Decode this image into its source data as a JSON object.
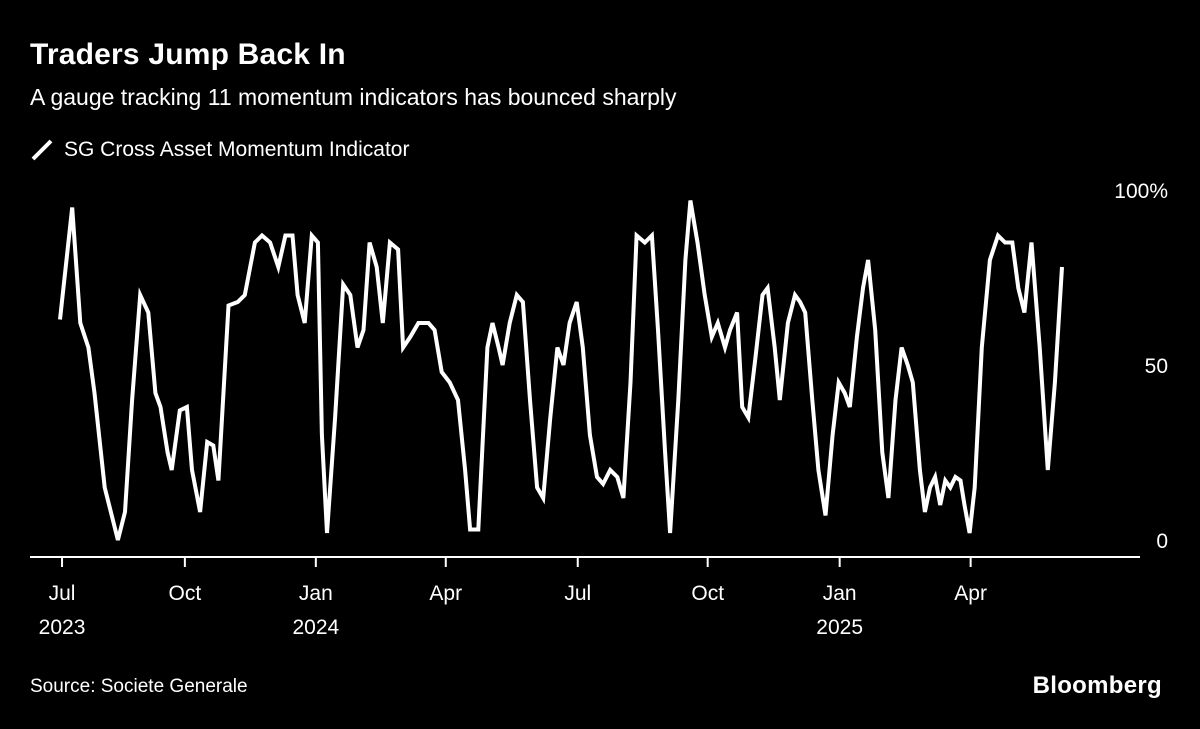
{
  "header": {
    "title": "Traders Jump Back In",
    "subtitle": "A gauge tracking 11 momentum indicators has bounced sharply"
  },
  "legend": {
    "label": "SG Cross Asset Momentum Indicator",
    "color": "#ffffff"
  },
  "footer": {
    "source": "Source: Societe Generale",
    "brand": "Bloomberg"
  },
  "chart_data": {
    "type": "line",
    "title": "Traders Jump Back In",
    "subtitle": "A gauge tracking 11 momentum indicators has bounced sharply",
    "xlabel": "",
    "ylabel": "",
    "ylim": [
      0,
      100
    ],
    "grid": false,
    "legend_position": "top-left",
    "background_color": "#000000",
    "x_unit": "weeks since Jul 2023",
    "y_ticks": [
      {
        "value": 100,
        "label": "100%"
      },
      {
        "value": 50,
        "label": "50"
      },
      {
        "value": 0,
        "label": "0"
      }
    ],
    "x_ticks": [
      {
        "x": 0.2,
        "label": "Jul",
        "year": "2023"
      },
      {
        "x": 12.3,
        "label": "Oct"
      },
      {
        "x": 25.2,
        "label": "Jan",
        "year": "2024"
      },
      {
        "x": 38.0,
        "label": "Apr"
      },
      {
        "x": 51.0,
        "label": "Jul"
      },
      {
        "x": 63.8,
        "label": "Oct"
      },
      {
        "x": 76.8,
        "label": "Jan",
        "year": "2025"
      },
      {
        "x": 89.7,
        "label": "Apr"
      }
    ],
    "series": [
      {
        "name": "SG Cross Asset Momentum Indicator",
        "color": "#ffffff"
      }
    ],
    "points": [
      [
        0,
        63
      ],
      [
        1.2,
        95
      ],
      [
        2,
        62
      ],
      [
        2.8,
        55
      ],
      [
        3.4,
        42
      ],
      [
        4.4,
        15
      ],
      [
        5.7,
        0
      ],
      [
        6.4,
        8
      ],
      [
        7.1,
        40
      ],
      [
        7.9,
        70
      ],
      [
        8.7,
        65
      ],
      [
        9.4,
        42
      ],
      [
        9.9,
        38
      ],
      [
        10.6,
        25
      ],
      [
        11,
        20
      ],
      [
        11.8,
        37
      ],
      [
        12.5,
        38
      ],
      [
        13,
        20
      ],
      [
        13.8,
        8
      ],
      [
        14.5,
        28
      ],
      [
        15.1,
        27
      ],
      [
        15.6,
        17
      ],
      [
        16.6,
        67
      ],
      [
        17.5,
        68
      ],
      [
        18.2,
        70
      ],
      [
        19.2,
        85
      ],
      [
        19.9,
        87
      ],
      [
        20.7,
        85
      ],
      [
        21.5,
        78
      ],
      [
        22.2,
        87
      ],
      [
        22.9,
        87
      ],
      [
        23.4,
        70
      ],
      [
        24.1,
        62
      ],
      [
        24.8,
        87
      ],
      [
        25.4,
        85
      ],
      [
        25.8,
        30
      ],
      [
        26.3,
        2
      ],
      [
        27.1,
        35
      ],
      [
        27.9,
        73
      ],
      [
        28.6,
        70
      ],
      [
        29.3,
        55
      ],
      [
        29.9,
        60
      ],
      [
        30.5,
        85
      ],
      [
        31.2,
        78
      ],
      [
        31.8,
        62
      ],
      [
        32.5,
        85
      ],
      [
        33.3,
        83
      ],
      [
        33.8,
        55
      ],
      [
        34.5,
        58
      ],
      [
        35.3,
        62
      ],
      [
        36.3,
        62
      ],
      [
        36.9,
        60
      ],
      [
        37.6,
        48
      ],
      [
        38.4,
        45
      ],
      [
        39.2,
        40
      ],
      [
        39.9,
        20
      ],
      [
        40.4,
        3
      ],
      [
        41.2,
        3
      ],
      [
        42.1,
        55
      ],
      [
        42.6,
        62
      ],
      [
        43.2,
        55
      ],
      [
        43.6,
        50
      ],
      [
        44.3,
        62
      ],
      [
        45,
        70
      ],
      [
        45.6,
        68
      ],
      [
        46.3,
        40
      ],
      [
        47,
        15
      ],
      [
        47.6,
        12
      ],
      [
        48.3,
        35
      ],
      [
        49,
        55
      ],
      [
        49.6,
        50
      ],
      [
        50.2,
        62
      ],
      [
        50.9,
        68
      ],
      [
        51.5,
        55
      ],
      [
        52.2,
        30
      ],
      [
        52.9,
        18
      ],
      [
        53.5,
        16
      ],
      [
        54.2,
        20
      ],
      [
        54.9,
        18
      ],
      [
        55.5,
        12
      ],
      [
        56.2,
        45
      ],
      [
        56.8,
        87
      ],
      [
        57.6,
        85
      ],
      [
        58.3,
        87
      ],
      [
        58.9,
        60
      ],
      [
        59.6,
        25
      ],
      [
        60.1,
        2
      ],
      [
        60.9,
        40
      ],
      [
        61.6,
        80
      ],
      [
        62.1,
        97
      ],
      [
        62.8,
        85
      ],
      [
        63.5,
        70
      ],
      [
        64.2,
        58
      ],
      [
        64.8,
        62
      ],
      [
        65.5,
        55
      ],
      [
        66,
        60
      ],
      [
        66.7,
        65
      ],
      [
        67.2,
        38
      ],
      [
        67.8,
        35
      ],
      [
        68.5,
        52
      ],
      [
        69.2,
        70
      ],
      [
        69.7,
        72
      ],
      [
        70.4,
        55
      ],
      [
        70.9,
        40
      ],
      [
        71.7,
        62
      ],
      [
        72.4,
        70
      ],
      [
        72.9,
        68
      ],
      [
        73.4,
        65
      ],
      [
        74.1,
        40
      ],
      [
        74.7,
        20
      ],
      [
        75.4,
        7
      ],
      [
        76.1,
        30
      ],
      [
        76.7,
        45
      ],
      [
        77.3,
        42
      ],
      [
        77.8,
        38
      ],
      [
        78.5,
        58
      ],
      [
        79.1,
        72
      ],
      [
        79.6,
        80
      ],
      [
        80.3,
        60
      ],
      [
        81,
        25
      ],
      [
        81.6,
        12
      ],
      [
        82.3,
        40
      ],
      [
        82.9,
        55
      ],
      [
        83.5,
        50
      ],
      [
        84,
        45
      ],
      [
        84.7,
        20
      ],
      [
        85.2,
        8
      ],
      [
        85.7,
        15
      ],
      [
        86.2,
        18
      ],
      [
        86.7,
        10
      ],
      [
        87.2,
        17
      ],
      [
        87.7,
        15
      ],
      [
        88.2,
        18
      ],
      [
        88.7,
        17
      ],
      [
        89.1,
        10
      ],
      [
        89.6,
        2
      ],
      [
        90.1,
        15
      ],
      [
        90.8,
        55
      ],
      [
        91.6,
        80
      ],
      [
        92.4,
        87
      ],
      [
        93.1,
        85
      ],
      [
        93.8,
        85
      ],
      [
        94.4,
        72
      ],
      [
        95,
        65
      ],
      [
        95.7,
        85
      ],
      [
        96.5,
        55
      ],
      [
        97.3,
        20
      ],
      [
        98,
        45
      ],
      [
        98.7,
        78
      ]
    ]
  }
}
